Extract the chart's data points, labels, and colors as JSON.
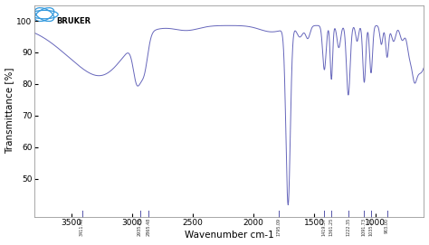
{
  "title": "",
  "xlabel": "Wavenumber cm-1",
  "ylabel": "Transmittance [%]",
  "xlim": [
    3800,
    600
  ],
  "ylim": [
    38,
    105
  ],
  "yticks": [
    50,
    60,
    70,
    80,
    90,
    100
  ],
  "xticks": [
    3500,
    3000,
    2500,
    2000,
    1500,
    1000
  ],
  "line_color": "#6666bb",
  "background_color": "#ffffff",
  "peak_labels": [
    "3411.40",
    "2935.70",
    "2865.48",
    "1795.09",
    "1419.57",
    "1361.25",
    "1222.35",
    "1091.73",
    "1035.27",
    "903.00"
  ],
  "peak_positions": [
    3411.4,
    2935.7,
    2865.48,
    1795.09,
    1419.57,
    1361.25,
    1222.35,
    1091.73,
    1035.27,
    903.0
  ]
}
